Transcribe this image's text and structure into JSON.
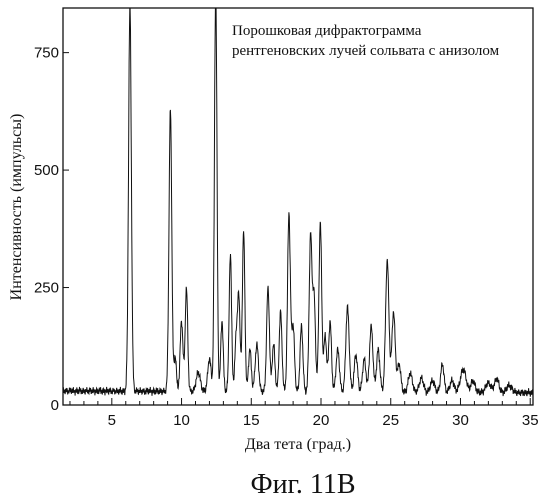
{
  "chart_data": {
    "type": "line",
    "title_lines": [
      "Порошковая дифрактограмма",
      "рентгеновских лучей сольвата с анизолом"
    ],
    "xlabel": "Два тета (град.)",
    "ylabel": "Интенсивность (импульсы)",
    "caption": "Фиг. 11B",
    "xlim": [
      1.5,
      35.2
    ],
    "ylim": [
      0,
      845
    ],
    "x_ticks": [
      5,
      10,
      15,
      20,
      25,
      30,
      35
    ],
    "y_ticks": [
      0,
      250,
      500,
      750
    ],
    "grid": false,
    "legend": "none",
    "baseline": 30,
    "peaks": [
      [
        6.3,
        820,
        0.1
      ],
      [
        9.2,
        600,
        0.1
      ],
      [
        9.55,
        75,
        0.08
      ],
      [
        10.0,
        150,
        0.1
      ],
      [
        10.35,
        220,
        0.09
      ],
      [
        11.2,
        40,
        0.15
      ],
      [
        12.0,
        70,
        0.12
      ],
      [
        12.45,
        860,
        0.09
      ],
      [
        12.9,
        150,
        0.09
      ],
      [
        13.5,
        290,
        0.09
      ],
      [
        13.9,
        110,
        0.08
      ],
      [
        14.1,
        210,
        0.09
      ],
      [
        14.45,
        340,
        0.09
      ],
      [
        14.9,
        90,
        0.1
      ],
      [
        15.4,
        100,
        0.12
      ],
      [
        16.2,
        220,
        0.1
      ],
      [
        16.6,
        100,
        0.1
      ],
      [
        17.1,
        170,
        0.1
      ],
      [
        17.7,
        380,
        0.1
      ],
      [
        18.0,
        140,
        0.1
      ],
      [
        18.6,
        140,
        0.1
      ],
      [
        19.25,
        330,
        0.1
      ],
      [
        19.5,
        200,
        0.1
      ],
      [
        19.95,
        360,
        0.1
      ],
      [
        20.3,
        120,
        0.1
      ],
      [
        20.65,
        150,
        0.1
      ],
      [
        21.2,
        90,
        0.12
      ],
      [
        21.9,
        180,
        0.12
      ],
      [
        22.5,
        80,
        0.12
      ],
      [
        23.1,
        70,
        0.12
      ],
      [
        23.6,
        140,
        0.12
      ],
      [
        24.1,
        90,
        0.12
      ],
      [
        24.75,
        280,
        0.12
      ],
      [
        25.2,
        170,
        0.12
      ],
      [
        25.6,
        60,
        0.12
      ],
      [
        26.4,
        40,
        0.15
      ],
      [
        27.2,
        30,
        0.15
      ],
      [
        28.0,
        25,
        0.15
      ],
      [
        28.7,
        60,
        0.12
      ],
      [
        29.4,
        25,
        0.15
      ],
      [
        30.2,
        50,
        0.2
      ],
      [
        30.9,
        25,
        0.15
      ],
      [
        32.0,
        20,
        0.2
      ],
      [
        32.6,
        30,
        0.15
      ],
      [
        33.5,
        15,
        0.2
      ]
    ]
  }
}
